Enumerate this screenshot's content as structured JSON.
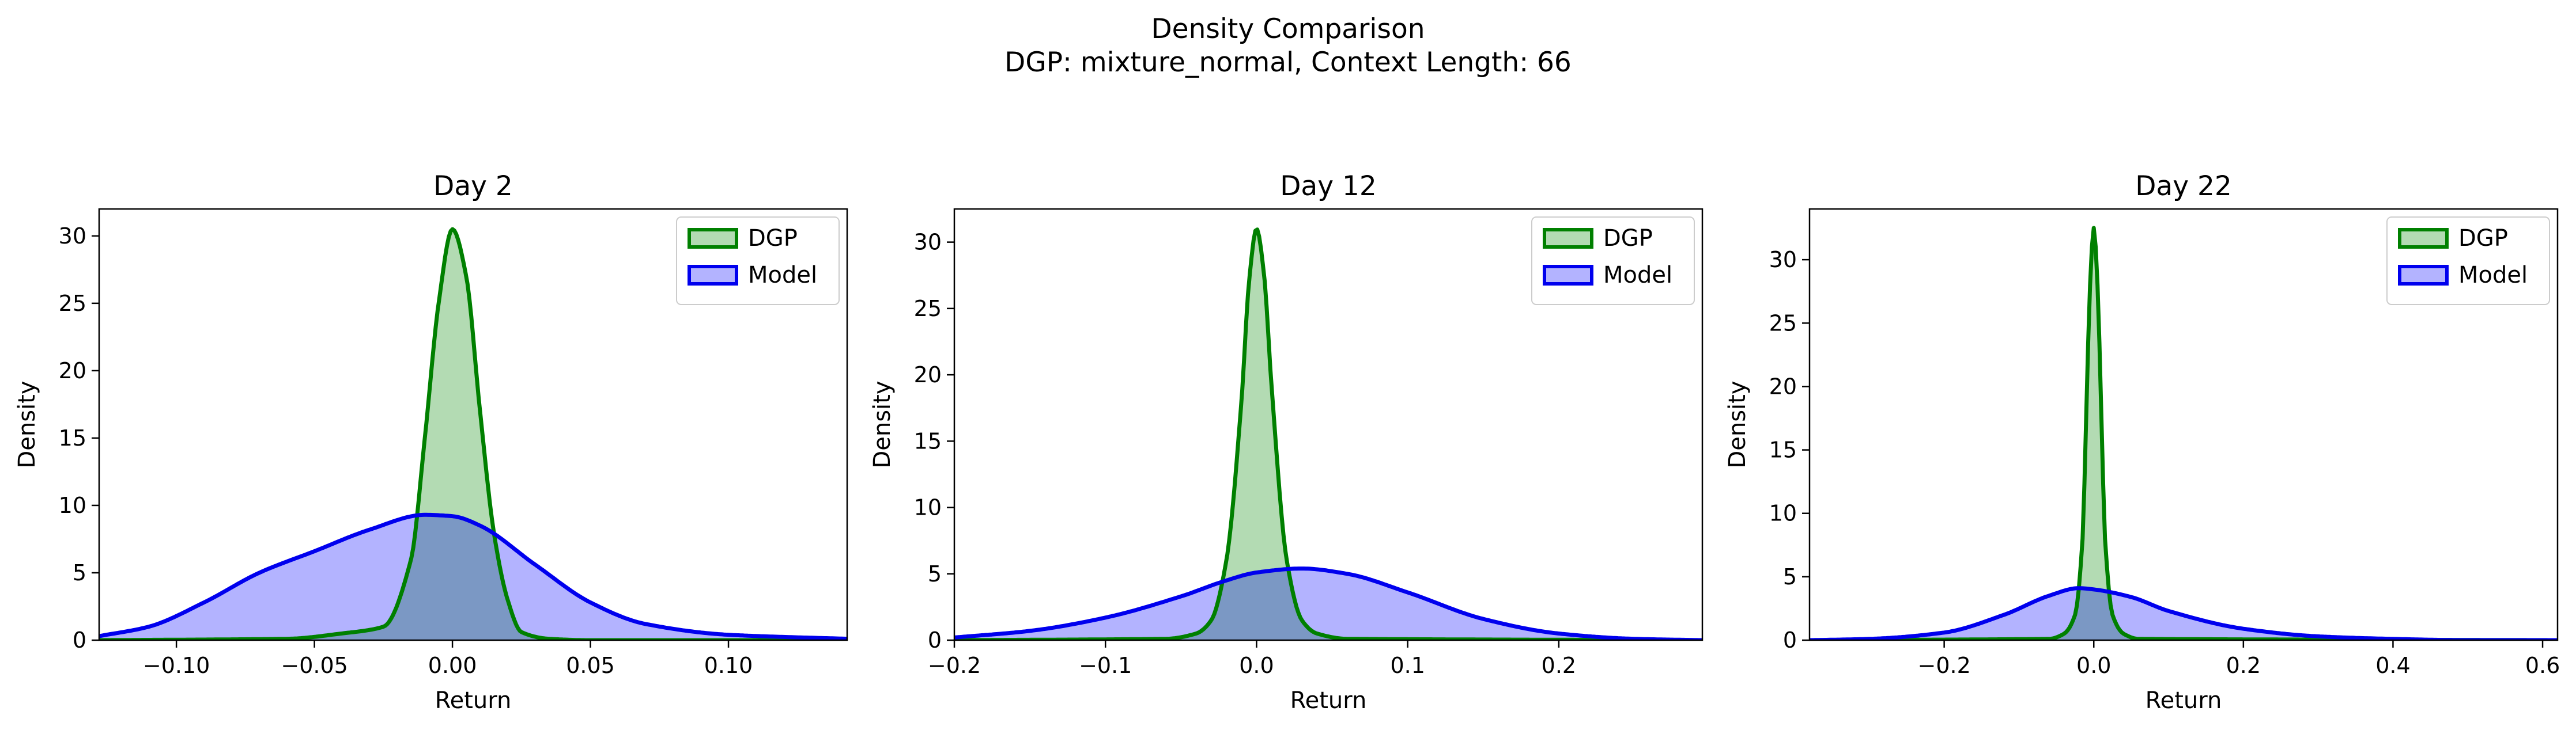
{
  "figure": {
    "title": "Density Comparison",
    "subtitle": "DGP: mixture_normal, Context Length: 66"
  },
  "colors": {
    "dgp_line": "#008000",
    "dgp_fill": "#b3dbb3",
    "model_line": "#0000ee",
    "model_fill": "#b3b3ff",
    "overlap_fill": "#7b98c4"
  },
  "chart_data": [
    {
      "type": "area",
      "title": "Day 2",
      "xlabel": "Return",
      "ylabel": "Density",
      "xlim": [
        -0.128,
        0.143
      ],
      "ylim": [
        0,
        32
      ],
      "xticks": [
        -0.1,
        -0.05,
        0,
        0.05,
        0.1
      ],
      "xtick_labels": [
        "−0.10",
        "−0.05",
        "0.00",
        "0.05",
        "0.10"
      ],
      "yticks": [
        0,
        5,
        10,
        15,
        20,
        25,
        30
      ],
      "ytick_labels": [
        "0",
        "5",
        "10",
        "15",
        "20",
        "25",
        "30"
      ],
      "legend": "top-right",
      "series": [
        {
          "name": "DGP",
          "x": [
            -0.128,
            -0.06,
            -0.04,
            -0.025,
            -0.015,
            -0.01,
            -0.005,
            0.0,
            0.005,
            0.01,
            0.015,
            0.02,
            0.025,
            0.035,
            0.05,
            0.143
          ],
          "y": [
            0.0,
            0.1,
            0.5,
            1.0,
            6.0,
            15.0,
            25.0,
            30.5,
            27.0,
            17.0,
            8.0,
            3.0,
            0.6,
            0.1,
            0.0,
            0.0
          ]
        },
        {
          "name": "Model",
          "x": [
            -0.128,
            -0.11,
            -0.09,
            -0.07,
            -0.05,
            -0.03,
            -0.01,
            0.0,
            0.01,
            0.03,
            0.05,
            0.07,
            0.1,
            0.143
          ],
          "y": [
            0.3,
            1.0,
            2.8,
            5.0,
            6.6,
            8.2,
            9.3,
            9.2,
            8.5,
            5.6,
            2.8,
            1.2,
            0.4,
            0.1
          ]
        }
      ]
    },
    {
      "type": "area",
      "title": "Day 12",
      "xlabel": "Return",
      "ylabel": "Density",
      "xlim": [
        -0.2,
        0.295
      ],
      "ylim": [
        0,
        32.5
      ],
      "xticks": [
        -0.2,
        -0.1,
        0,
        0.1,
        0.2
      ],
      "xtick_labels": [
        "−0.2",
        "−0.1",
        "0.0",
        "0.1",
        "0.2"
      ],
      "yticks": [
        0,
        5,
        10,
        15,
        20,
        25,
        30
      ],
      "ytick_labels": [
        "0",
        "5",
        "10",
        "15",
        "20",
        "25",
        "30"
      ],
      "legend": "top-right",
      "series": [
        {
          "name": "DGP",
          "x": [
            -0.2,
            -0.06,
            -0.04,
            -0.03,
            -0.02,
            -0.01,
            -0.005,
            0.0,
            0.005,
            0.01,
            0.02,
            0.03,
            0.04,
            0.06,
            0.295
          ],
          "y": [
            0.0,
            0.1,
            0.5,
            1.5,
            6.0,
            18.0,
            27.0,
            31.0,
            27.5,
            19.0,
            6.0,
            1.5,
            0.5,
            0.1,
            0.0
          ]
        },
        {
          "name": "Model",
          "x": [
            -0.2,
            -0.15,
            -0.1,
            -0.05,
            -0.02,
            0.0,
            0.03,
            0.06,
            0.1,
            0.15,
            0.2,
            0.25,
            0.295
          ],
          "y": [
            0.2,
            0.7,
            1.7,
            3.3,
            4.5,
            5.1,
            5.4,
            5.0,
            3.6,
            1.6,
            0.5,
            0.1,
            0.0
          ]
        }
      ]
    },
    {
      "type": "area",
      "title": "Day 22",
      "xlabel": "Return",
      "ylabel": "Density",
      "xlim": [
        -0.38,
        0.62
      ],
      "ylim": [
        0,
        34
      ],
      "xticks": [
        -0.2,
        0,
        0.2,
        0.4,
        0.6
      ],
      "xtick_labels": [
        "−0.2",
        "0.0",
        "0.2",
        "0.4",
        "0.6"
      ],
      "yticks": [
        0,
        5,
        10,
        15,
        20,
        25,
        30
      ],
      "ytick_labels": [
        "0",
        "5",
        "10",
        "15",
        "20",
        "25",
        "30"
      ],
      "legend": "top-right",
      "series": [
        {
          "name": "DGP",
          "x": [
            -0.38,
            -0.06,
            -0.04,
            -0.025,
            -0.015,
            -0.01,
            -0.005,
            0.0,
            0.005,
            0.01,
            0.015,
            0.025,
            0.04,
            0.06,
            0.62
          ],
          "y": [
            0.0,
            0.1,
            0.5,
            2.0,
            8.0,
            18.0,
            28.0,
            32.5,
            28.0,
            18.0,
            8.0,
            2.0,
            0.5,
            0.1,
            0.0
          ]
        },
        {
          "name": "Model",
          "x": [
            -0.38,
            -0.3,
            -0.2,
            -0.12,
            -0.06,
            -0.02,
            0.0,
            0.05,
            0.1,
            0.2,
            0.3,
            0.4,
            0.5,
            0.62
          ],
          "y": [
            0.0,
            0.1,
            0.6,
            2.0,
            3.5,
            4.1,
            4.0,
            3.4,
            2.3,
            0.9,
            0.3,
            0.1,
            0.0,
            0.0
          ]
        }
      ]
    }
  ]
}
